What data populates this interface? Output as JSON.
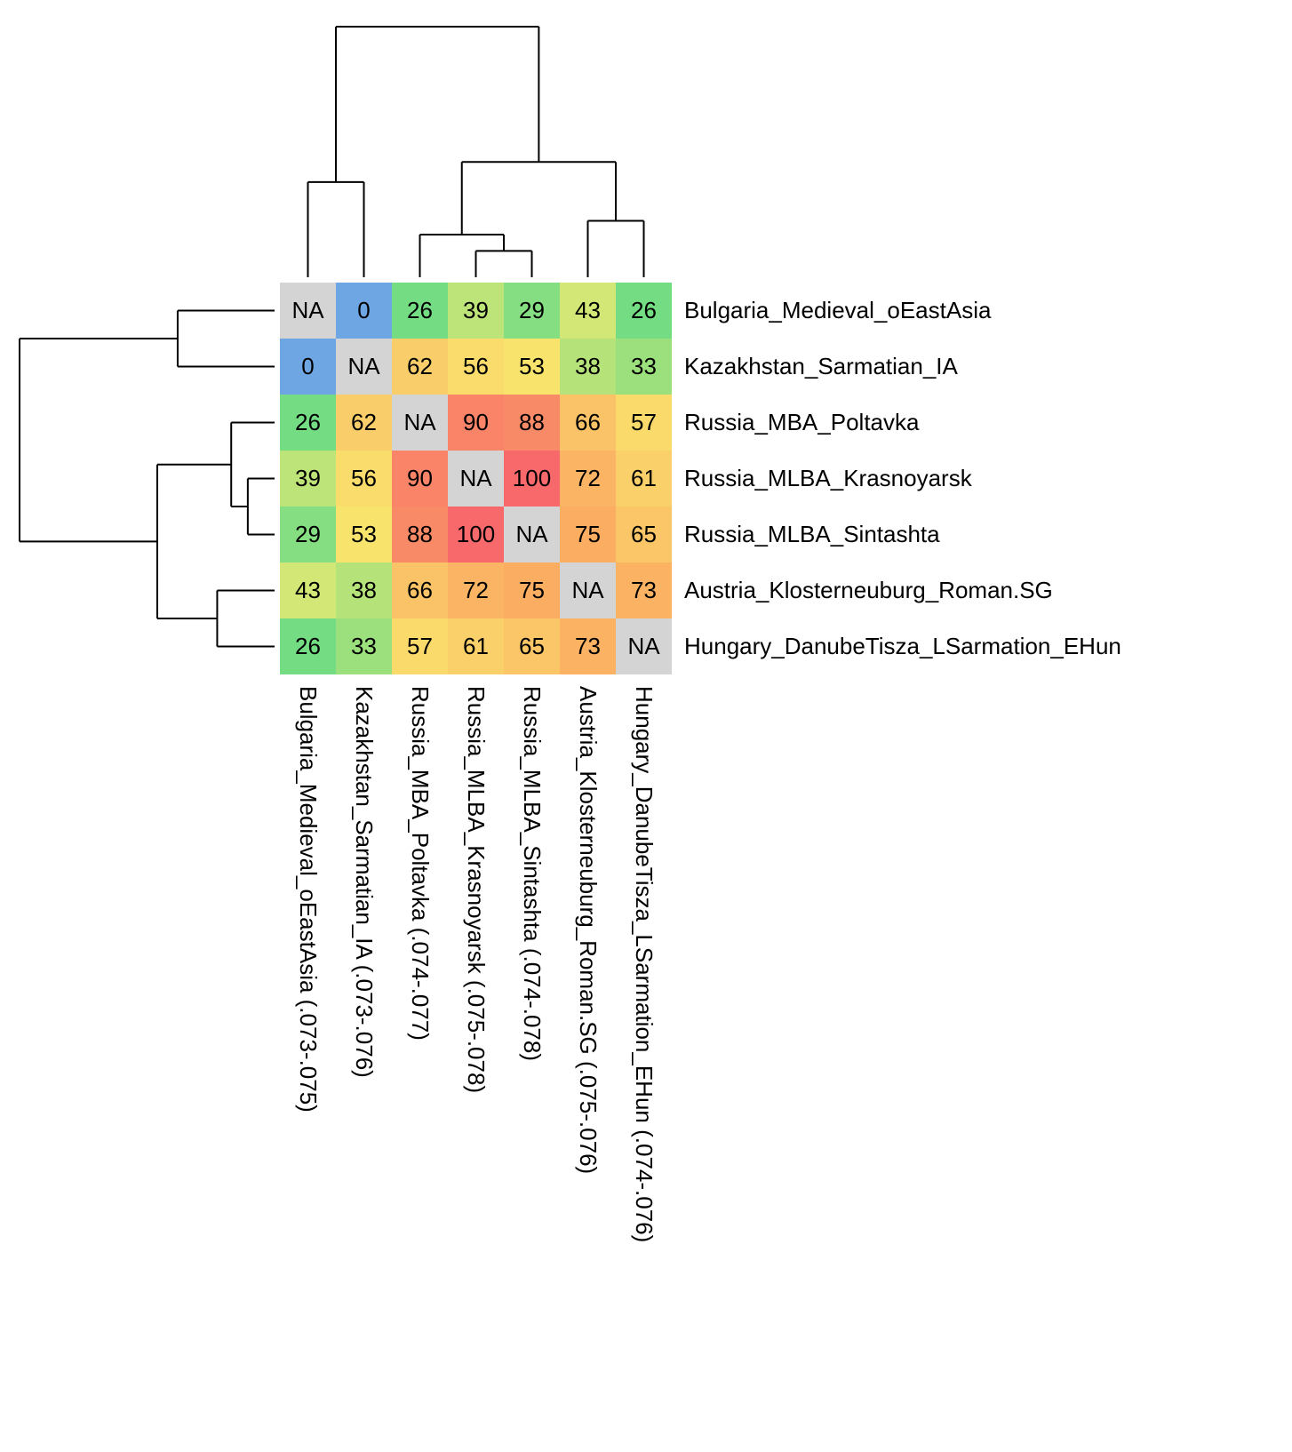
{
  "chart_data": {
    "type": "heatmap",
    "title": "",
    "rows": [
      "Bulgaria_Medieval_oEastAsia",
      "Kazakhstan_Sarmatian_IA",
      "Russia_MBA_Poltavka",
      "Russia_MLBA_Krasnoyarsk",
      "Russia_MLBA_Sintashta",
      "Austria_Klosterneuburg_Roman.SG",
      "Hungary_DanubeTisza_LSarmation_EHun"
    ],
    "cols": [
      "Bulgaria_Medieval_oEastAsia (.073-.075)",
      "Kazakhstan_Sarmatian_IA (.073-.076)",
      "Russia_MBA_Poltavka (.074-.077)",
      "Russia_MLBA_Krasnoyarsk (.075-.078)",
      "Russia_MLBA_Sintashta (.074-.078)",
      "Austria_Klosterneuburg_Roman.SG (.075-.076)",
      "Hungary_DanubeTisza_LSarmation_EHun (.074-.076)"
    ],
    "values": [
      [
        null,
        0,
        26,
        39,
        29,
        43,
        26
      ],
      [
        0,
        null,
        62,
        56,
        53,
        38,
        33
      ],
      [
        26,
        62,
        null,
        90,
        88,
        66,
        57
      ],
      [
        39,
        56,
        90,
        null,
        100,
        72,
        61
      ],
      [
        29,
        53,
        88,
        100,
        null,
        75,
        65
      ],
      [
        43,
        38,
        66,
        72,
        75,
        null,
        73
      ],
      [
        26,
        33,
        57,
        61,
        65,
        73,
        null
      ]
    ],
    "na_label": "NA",
    "na_color": "#D4D4D4",
    "value_domain": [
      0,
      100
    ],
    "color_scale_stops": [
      [
        0.0,
        "#6EA6E3"
      ],
      [
        0.25,
        "#6FDB84"
      ],
      [
        0.5,
        "#F8EB6F"
      ],
      [
        0.75,
        "#FBAD62"
      ],
      [
        1.0,
        "#F8696B"
      ]
    ],
    "legend": "none",
    "grid": false,
    "dendrogram": {
      "applies_to": "rows_and_columns",
      "tree": {
        "h": 1.0,
        "c": [
          {
            "h": 0.38,
            "c": [
              0,
              1
            ]
          },
          {
            "h": 0.46,
            "c": [
              {
                "h": 0.17,
                "c": [
                  2,
                  {
                    "h": 0.105,
                    "c": [
                      3,
                      4
                    ]
                  }
                ]
              },
              {
                "h": 0.225,
                "c": [
                  5,
                  6
                ]
              }
            ]
          }
        ]
      }
    }
  }
}
